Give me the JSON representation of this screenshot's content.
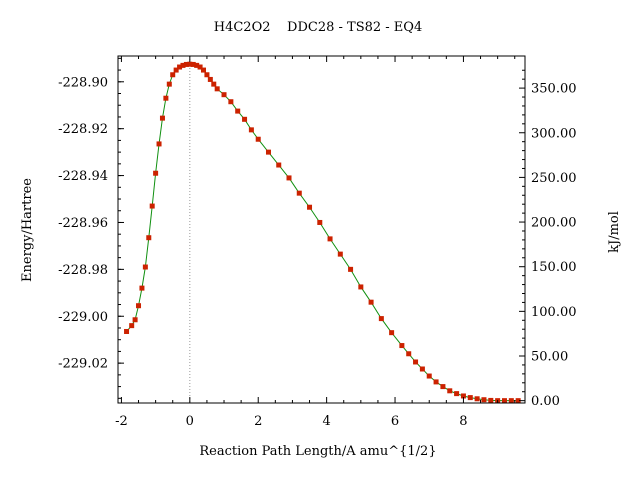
{
  "chart_data": {
    "type": "line",
    "title": "H4C2O2    DDC28 - TS82 - EQ4",
    "xlabel": "Reaction Path Length/A amu^{1/2}",
    "ylabel": "Energy/Hartree",
    "y2label": "kJ/mol",
    "xlim": [
      -2.1,
      9.8
    ],
    "ylim": [
      -229.037,
      -228.889
    ],
    "y2_reference_energy": -229.036,
    "y2_conversion": 2625.5,
    "x_ticks": [
      -2,
      0,
      2,
      4,
      6,
      8
    ],
    "x_tick_labels": [
      "-2",
      "0",
      "2",
      "4",
      "6",
      "8"
    ],
    "y_ticks": [
      -228.9,
      -228.92,
      -228.94,
      -228.96,
      -228.98,
      -229.0,
      -229.02
    ],
    "y_tick_labels": [
      "-228.90",
      "-228.92",
      "-228.94",
      "-228.96",
      "-228.98",
      "-229.00",
      "-229.02"
    ],
    "y2_ticks": [
      350,
      300,
      250,
      200,
      150,
      100,
      50,
      0
    ],
    "y2_tick_labels": [
      "350.00",
      "300.00",
      "250.00",
      "200.00",
      "150.00",
      "100.00",
      "50.00",
      "0.00"
    ],
    "ts_marker_x": 0,
    "colors": {
      "line": "#109010",
      "points": "#cc2200",
      "ts_marker": "#999999",
      "frame": "#000000"
    },
    "series": [
      {
        "points": [
          [
            -1.85,
            -229.0065
          ],
          [
            -1.7,
            -229.004
          ],
          [
            -1.6,
            -229.0015
          ],
          [
            -1.5,
            -228.9955
          ],
          [
            -1.4,
            -228.988
          ],
          [
            -1.3,
            -228.979
          ],
          [
            -1.2,
            -228.9665
          ],
          [
            -1.1,
            -228.953
          ],
          [
            -1.0,
            -228.939
          ],
          [
            -0.9,
            -228.9265
          ],
          [
            -0.8,
            -228.9155
          ],
          [
            -0.7,
            -228.907
          ],
          [
            -0.6,
            -228.901
          ],
          [
            -0.5,
            -228.897
          ],
          [
            -0.4,
            -228.895
          ],
          [
            -0.3,
            -228.8937
          ],
          [
            -0.2,
            -228.893
          ],
          [
            -0.1,
            -228.8926
          ],
          [
            0.0,
            -228.8925
          ],
          [
            0.1,
            -228.8926
          ],
          [
            0.2,
            -228.893
          ],
          [
            0.3,
            -228.8937
          ],
          [
            0.4,
            -228.895
          ],
          [
            0.5,
            -228.897
          ],
          [
            0.6,
            -228.899
          ],
          [
            0.7,
            -228.901
          ],
          [
            0.8,
            -228.903
          ],
          [
            1.0,
            -228.9055
          ],
          [
            1.2,
            -228.9085
          ],
          [
            1.4,
            -228.9125
          ],
          [
            1.6,
            -228.916
          ],
          [
            1.8,
            -228.9205
          ],
          [
            2.0,
            -228.9245
          ],
          [
            2.3,
            -228.93
          ],
          [
            2.6,
            -228.9355
          ],
          [
            2.9,
            -228.941
          ],
          [
            3.2,
            -228.9475
          ],
          [
            3.5,
            -228.9535
          ],
          [
            3.8,
            -228.96
          ],
          [
            4.1,
            -228.967
          ],
          [
            4.4,
            -228.9735
          ],
          [
            4.7,
            -228.98
          ],
          [
            5.0,
            -228.9875
          ],
          [
            5.3,
            -228.994
          ],
          [
            5.6,
            -229.001
          ],
          [
            5.9,
            -229.007
          ],
          [
            6.2,
            -229.0125
          ],
          [
            6.4,
            -229.016
          ],
          [
            6.6,
            -229.0195
          ],
          [
            6.8,
            -229.0225
          ],
          [
            7.0,
            -229.0255
          ],
          [
            7.2,
            -229.028
          ],
          [
            7.4,
            -229.03
          ],
          [
            7.6,
            -229.0318
          ],
          [
            7.8,
            -229.033
          ],
          [
            8.0,
            -229.034
          ],
          [
            8.2,
            -229.0347
          ],
          [
            8.4,
            -229.0352
          ],
          [
            8.6,
            -229.0356
          ],
          [
            8.8,
            -229.0359
          ],
          [
            9.0,
            -229.036
          ],
          [
            9.2,
            -229.036
          ],
          [
            9.4,
            -229.036
          ],
          [
            9.6,
            -229.036
          ]
        ]
      }
    ]
  }
}
